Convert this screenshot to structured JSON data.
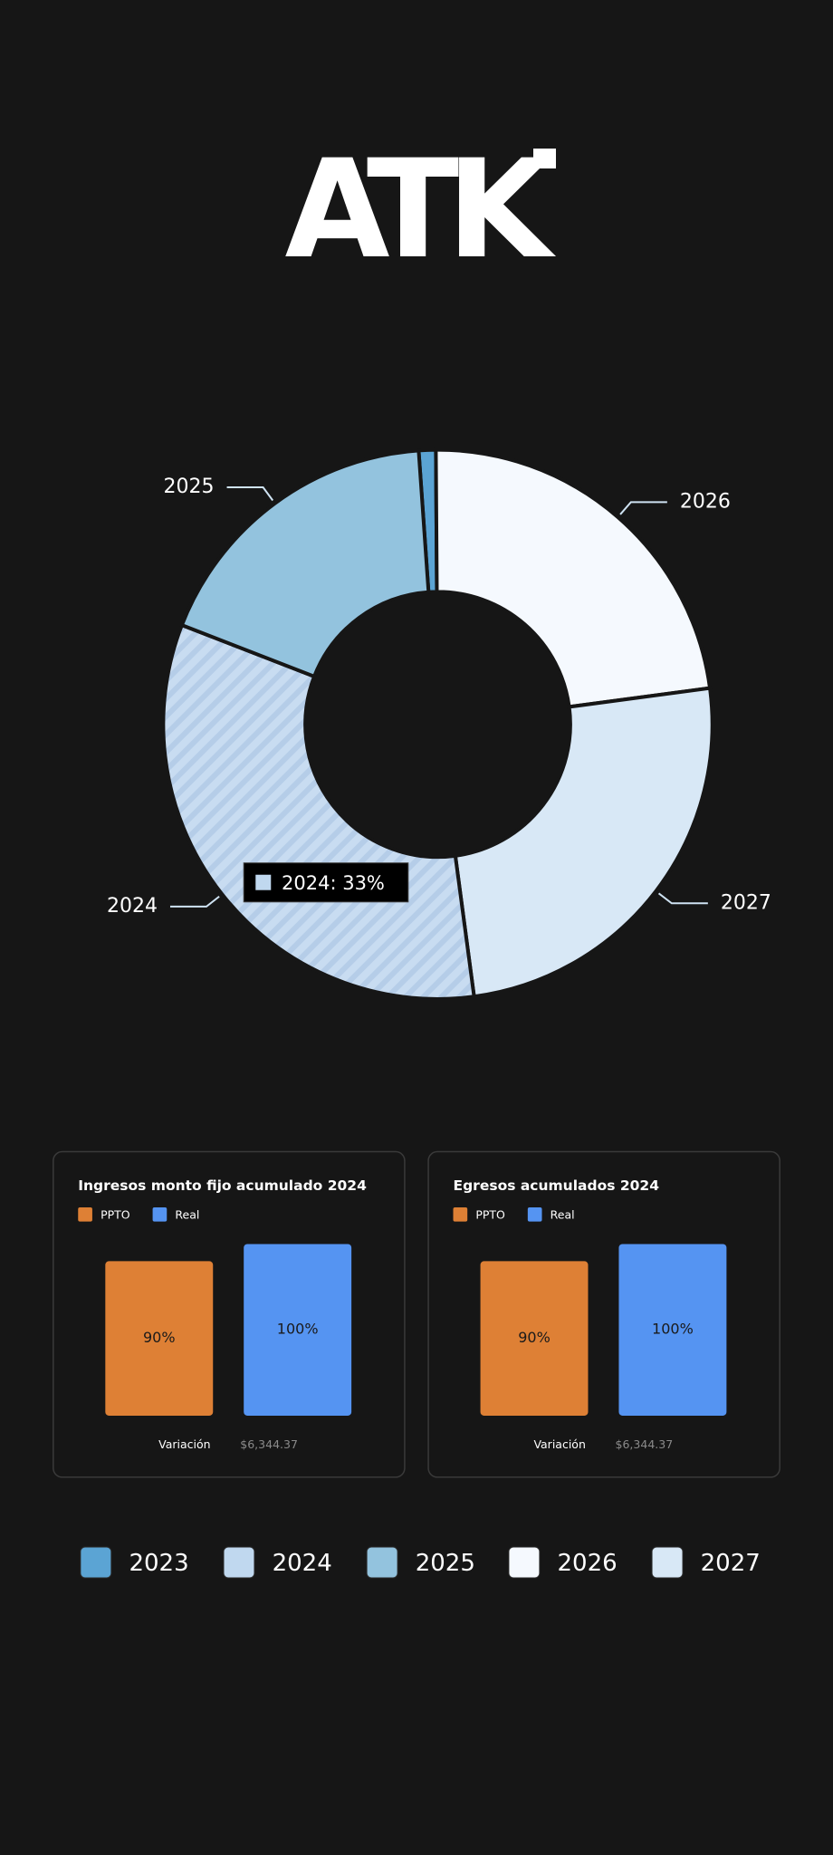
{
  "logo": "ATK",
  "chart_data": [
    {
      "type": "donut",
      "categories": [
        "2023",
        "2024",
        "2025",
        "2026",
        "2027"
      ],
      "values": [
        1,
        33,
        18,
        23,
        25
      ],
      "colors": [
        "#5ba4d4",
        "#c0d8ef",
        "#93c3de",
        "#f5f9fe",
        "#d8e8f6"
      ],
      "hatched": "2024",
      "tooltip": "2024: 33%",
      "legend": "bottom"
    },
    {
      "type": "bar",
      "title": "Ingresos monto fijo acumulado 2024",
      "series": [
        {
          "name": "PPTO",
          "color": "#de8035",
          "values": [
            90
          ],
          "value_labels": [
            "90%"
          ]
        },
        {
          "name": "Real",
          "color": "#5594f2",
          "values": [
            100
          ],
          "value_labels": [
            "100%"
          ]
        }
      ],
      "ylim": [
        0,
        100
      ],
      "footer_label": "Variación",
      "footer_value": "$6,344.37"
    },
    {
      "type": "bar",
      "title": "Egresos acumulados 2024",
      "series": [
        {
          "name": "PPTO",
          "color": "#de8035",
          "values": [
            90
          ],
          "value_labels": [
            "90%"
          ]
        },
        {
          "name": "Real",
          "color": "#5594f2",
          "values": [
            100
          ],
          "value_labels": [
            "100%"
          ]
        }
      ],
      "ylim": [
        0,
        100
      ],
      "footer_label": "Variación",
      "footer_value": "$6,344.37"
    }
  ]
}
